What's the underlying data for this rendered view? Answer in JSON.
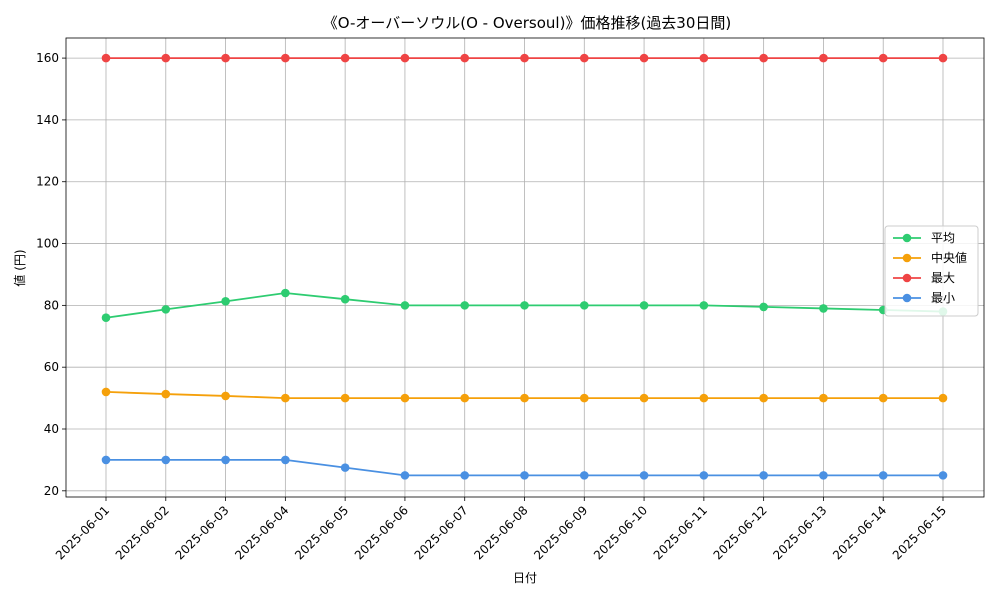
{
  "chart_data": {
    "type": "line",
    "title": "《O-オーバーソウル(O - Oversoul)》価格推移(過去30日間)",
    "xlabel": "日付",
    "ylabel": "値 (円)",
    "categories": [
      "2025-06-01",
      "2025-06-02",
      "2025-06-03",
      "2025-06-04",
      "2025-06-05",
      "2025-06-06",
      "2025-06-07",
      "2025-06-08",
      "2025-06-09",
      "2025-06-10",
      "2025-06-11",
      "2025-06-12",
      "2025-06-13",
      "2025-06-14",
      "2025-06-15"
    ],
    "yticks": [
      20,
      40,
      60,
      80,
      100,
      120,
      140,
      160
    ],
    "ylim": [
      18,
      166.5
    ],
    "grid": true,
    "legend_position": "center-right",
    "series": [
      {
        "name": "平均",
        "color": "#2ecc71",
        "values": [
          76,
          78.7,
          81.3,
          84,
          82,
          80,
          80,
          80,
          80,
          80,
          80,
          79.5,
          79,
          78.5,
          78
        ]
      },
      {
        "name": "中央値",
        "color": "#f5a00a",
        "values": [
          52,
          51.3,
          50.7,
          50,
          50,
          50,
          50,
          50,
          50,
          50,
          50,
          50,
          50,
          50,
          50
        ]
      },
      {
        "name": "最大",
        "color": "#ef4444",
        "values": [
          160,
          160,
          160,
          160,
          160,
          160,
          160,
          160,
          160,
          160,
          160,
          160,
          160,
          160,
          160
        ]
      },
      {
        "name": "最小",
        "color": "#4a90e2",
        "values": [
          30,
          30,
          30,
          30,
          27.5,
          25,
          25,
          25,
          25,
          25,
          25,
          25,
          25,
          25,
          25
        ]
      }
    ]
  }
}
